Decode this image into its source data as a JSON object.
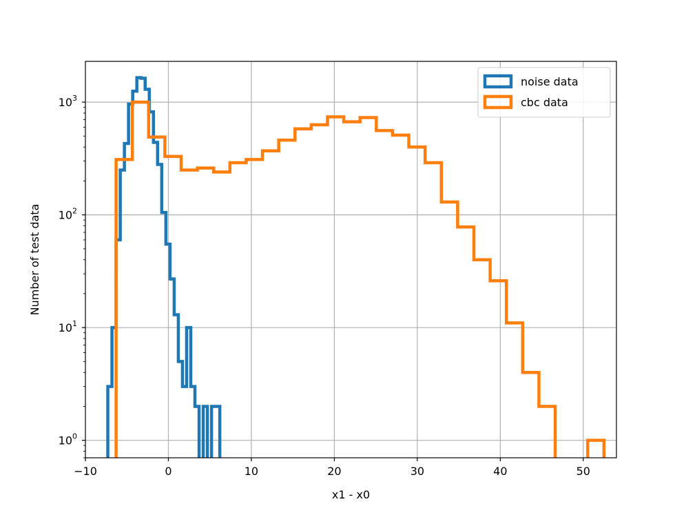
{
  "chart_data": {
    "type": "histogram",
    "xlabel": "x1 - x0",
    "ylabel": "Number of test data",
    "xlim": [
      -10,
      54
    ],
    "ylim": [
      0.7,
      2300
    ],
    "yscale": "log",
    "grid": true,
    "legend_position": "upper right",
    "x_ticks": [
      {
        "value": -10,
        "label": "−10"
      },
      {
        "value": 0,
        "label": "0"
      },
      {
        "value": 10,
        "label": "10"
      },
      {
        "value": 20,
        "label": "20"
      },
      {
        "value": 30,
        "label": "30"
      },
      {
        "value": 40,
        "label": "40"
      },
      {
        "value": 50,
        "label": "50"
      }
    ],
    "y_ticks": [
      {
        "value": 1,
        "base": "10",
        "exp": "0"
      },
      {
        "value": 10,
        "base": "10",
        "exp": "1"
      },
      {
        "value": 100,
        "base": "10",
        "exp": "2"
      },
      {
        "value": 1000,
        "base": "10",
        "exp": "3"
      }
    ],
    "series": [
      {
        "name": "noise data",
        "color": "#1f77b4",
        "bin_start": -7.3,
        "bin_width": 0.5,
        "counts": [
          3,
          10,
          60,
          250,
          430,
          960,
          1250,
          1650,
          1630,
          1300,
          820,
          440,
          280,
          105,
          55,
          27,
          13,
          5,
          3,
          10,
          3,
          2,
          0,
          2,
          0,
          2,
          2,
          0
        ]
      },
      {
        "name": "cbc data",
        "color": "#ff7f0e",
        "bin_start": -6.3,
        "bin_width": 1.96,
        "counts": [
          310,
          1000,
          490,
          330,
          250,
          260,
          240,
          290,
          310,
          370,
          460,
          580,
          630,
          740,
          670,
          730,
          560,
          510,
          400,
          290,
          130,
          78,
          40,
          26,
          11,
          4,
          2,
          0,
          0,
          1
        ]
      }
    ]
  }
}
